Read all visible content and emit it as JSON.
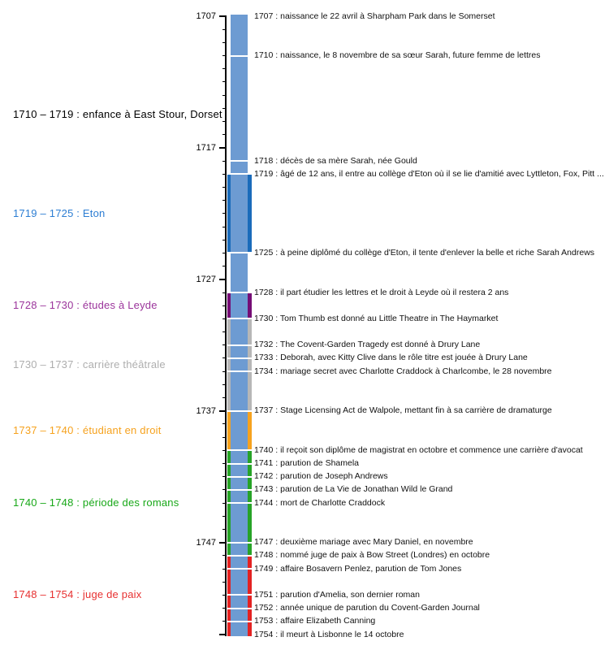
{
  "chart_data": {
    "type": "timeline",
    "orientation": "vertical",
    "title": "",
    "axis": {
      "start": 1707,
      "end": 1754,
      "labeled_ticks": [
        1707,
        1717,
        1727,
        1737,
        1747
      ],
      "minor_tick_interval": 1
    },
    "bar_color": "#6d9bd2",
    "axis_color": "#000000",
    "separator_color": "#ffffff",
    "periods": [
      {
        "start": 1710,
        "end": 1719,
        "label": "1710 – 1719 : enfance à East Stour, Dorset",
        "band_color": null,
        "text_color": "#000000"
      },
      {
        "start": 1719,
        "end": 1725,
        "label": "1719 – 1725 : Eton",
        "band_color": "#1a6bba",
        "text_color": "#2d7ed3"
      },
      {
        "start": 1728,
        "end": 1730,
        "label": "1728 – 1730 : études à Leyde",
        "band_color": "#750d75",
        "text_color": "#9b349b"
      },
      {
        "start": 1730,
        "end": 1737,
        "label": "1730 – 1737 : carrière théâtrale",
        "band_color": "#b7b7b7",
        "text_color": "#aeaeae"
      },
      {
        "start": 1737,
        "end": 1740,
        "label": "1737 – 1740 : étudiant en droit",
        "band_color": "#f6a21e",
        "text_color": "#f6a21e"
      },
      {
        "start": 1740,
        "end": 1748,
        "label": "1740 – 1748 : période des romans",
        "band_color": "#27a327",
        "text_color": "#18a818"
      },
      {
        "start": 1748,
        "end": 1754,
        "label": "1748 – 1754 : juge de paix",
        "band_color": "#e32222",
        "text_color": "#e73030"
      }
    ],
    "events": [
      {
        "year": 1707,
        "label": "1707 : naissance le 22 avril à Sharpham Park dans le Somerset"
      },
      {
        "year": 1710,
        "label": "1710 : naissance, le 8 novembre de sa sœur Sarah, future femme de lettres"
      },
      {
        "year": 1718,
        "label": "1718 : décès de sa mère Sarah, née Gould"
      },
      {
        "year": 1719,
        "label": "1719 : âgé de 12 ans, il entre au collège d'Eton où il se lie d'amitié avec Lyttleton, Fox, Pitt ..."
      },
      {
        "year": 1725,
        "label": "1725 : à peine diplômé du collège d'Eton, il tente d'enlever la belle et riche Sarah Andrews"
      },
      {
        "year": 1728,
        "label": "1728 : il part étudier les lettres et le droit à Leyde où il restera 2 ans"
      },
      {
        "year": 1730,
        "label": "1730 : Tom Thumb est donné au Little Theatre in The Haymarket"
      },
      {
        "year": 1732,
        "label": "1732 : The Covent-Garden Tragedy est donné à Drury Lane"
      },
      {
        "year": 1733,
        "label": "1733 : Deborah, avec Kitty Clive dans le rôle titre est jouée à Drury Lane"
      },
      {
        "year": 1734,
        "label": "1734 : mariage secret avec Charlotte Craddock à Charlcombe, le 28 novembre"
      },
      {
        "year": 1737,
        "label": "1737 : Stage Licensing Act de Walpole, mettant fin à sa carrière de dramaturge"
      },
      {
        "year": 1740,
        "label": "1740 : il reçoit son diplôme de magistrat en octobre et commence une carrière d'avocat"
      },
      {
        "year": 1741,
        "label": "1741 : parution de Shamela"
      },
      {
        "year": 1742,
        "label": "1742 : parution de Joseph Andrews"
      },
      {
        "year": 1743,
        "label": "1743 : parution de La Vie de Jonathan Wild le Grand"
      },
      {
        "year": 1744,
        "label": "1744 : mort de Charlotte Craddock"
      },
      {
        "year": 1747,
        "label": "1747 : deuxième mariage avec Mary Daniel, en novembre"
      },
      {
        "year": 1748,
        "label": "1748 : nommé juge de paix à Bow Street (Londres) en octobre"
      },
      {
        "year": 1749,
        "label": "1749 : affaire Bosavern Penlez, parution de Tom Jones"
      },
      {
        "year": 1751,
        "label": "1751 : parution d'Amelia, son dernier roman"
      },
      {
        "year": 1752,
        "label": "1752 : année unique de parution du Covent-Garden Journal"
      },
      {
        "year": 1753,
        "label": "1753 : affaire Elizabeth Canning"
      },
      {
        "year": 1754,
        "label": "1754 : il meurt à Lisbonne le 14 octobre"
      }
    ]
  }
}
